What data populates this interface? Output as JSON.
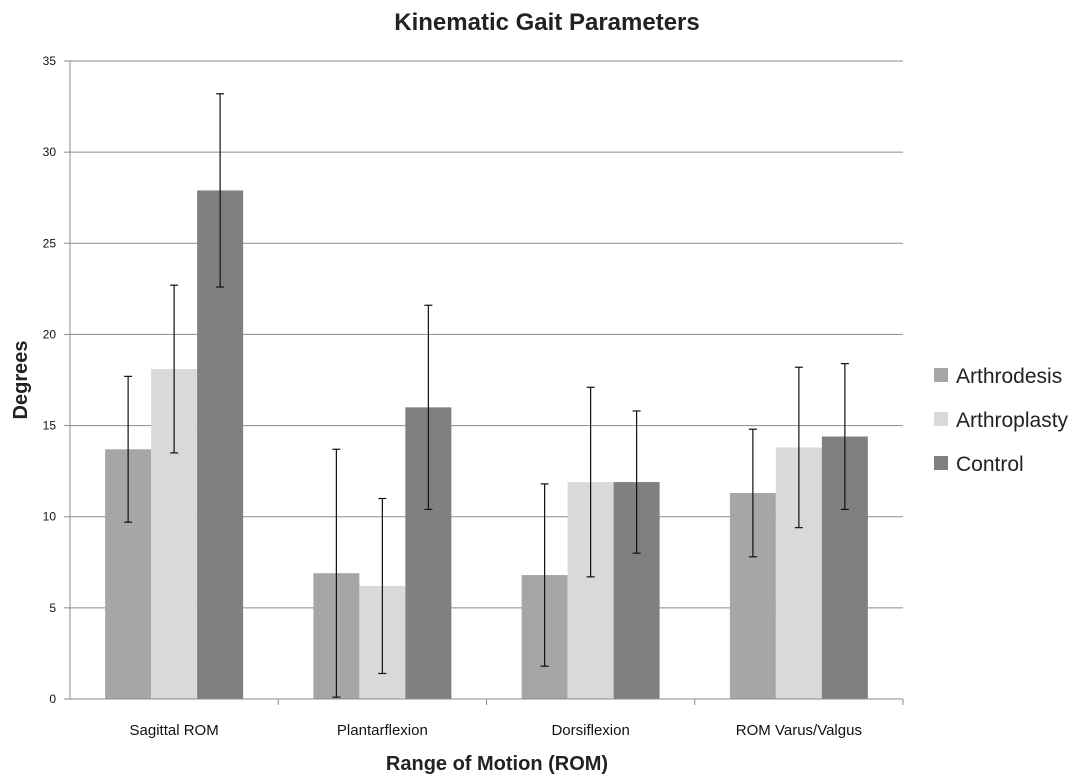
{
  "chart_data": {
    "type": "bar",
    "title": "Kinematic Gait Parameters",
    "xlabel": "Range of Motion  (ROM)",
    "ylabel": "Degrees",
    "ylim": [
      0,
      35
    ],
    "yticks": [
      0,
      5,
      10,
      15,
      20,
      25,
      30,
      35
    ],
    "grid": true,
    "legend_position": "right",
    "categories": [
      "Sagittal ROM",
      "Plantarflexion",
      "Dorsiflexion",
      "ROM Varus/Valgus"
    ],
    "series": [
      {
        "name": "Arthrodesis",
        "color": "#a6a6a6",
        "values": [
          13.7,
          6.9,
          6.8,
          11.3
        ],
        "error_low": [
          9.7,
          0.1,
          1.8,
          7.8
        ],
        "error_high": [
          17.7,
          13.7,
          11.8,
          14.8
        ]
      },
      {
        "name": "Arthroplasty",
        "color": "#d9d9d9",
        "values": [
          18.1,
          6.2,
          11.9,
          13.8
        ],
        "error_low": [
          13.5,
          1.4,
          6.7,
          9.4
        ],
        "error_high": [
          22.7,
          11.0,
          17.1,
          18.2
        ]
      },
      {
        "name": "Control",
        "color": "#808080",
        "values": [
          27.9,
          16.0,
          11.9,
          14.4
        ],
        "error_low": [
          22.6,
          10.4,
          8.0,
          10.4
        ],
        "error_high": [
          33.2,
          21.6,
          15.8,
          18.4
        ]
      }
    ]
  }
}
